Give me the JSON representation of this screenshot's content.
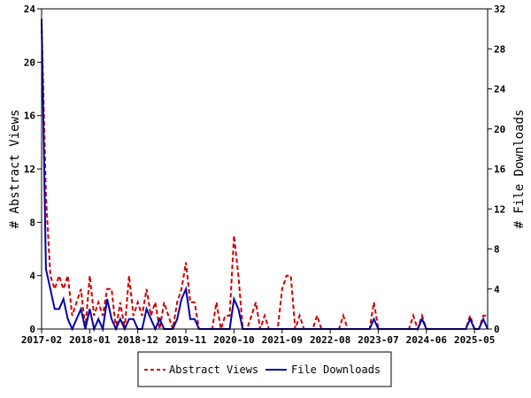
{
  "chart_data": {
    "type": "line",
    "x_start": "2017-02",
    "x_end": "2025-08",
    "x_ticks": [
      "2017-02",
      "2018-01",
      "2018-12",
      "2019-11",
      "2020-10",
      "2021-09",
      "2022-08",
      "2023-07",
      "2024-06",
      "2025-05"
    ],
    "ylabel": "# Abstract Views",
    "ylabel_right": "# File Downloads",
    "ylim": [
      0,
      24
    ],
    "ylim_right": [
      0,
      32
    ],
    "y_ticks": [
      "0",
      "4",
      "8",
      "12",
      "16",
      "20",
      "24"
    ],
    "y_ticks_right": [
      "0",
      "4",
      "8",
      "12",
      "16",
      "20",
      "24",
      "28",
      "32"
    ],
    "legend_position": "bottom-center",
    "grid": false,
    "series": [
      {
        "name": "Abstract Views",
        "axis": "left",
        "color": "#cc0000",
        "style": "dashed",
        "points": [
          [
            "2017-02",
            23
          ],
          [
            "2017-03",
            10
          ],
          [
            "2017-04",
            4
          ],
          [
            "2017-05",
            3
          ],
          [
            "2017-06",
            4
          ],
          [
            "2017-07",
            3
          ],
          [
            "2017-08",
            4
          ],
          [
            "2017-09",
            1
          ],
          [
            "2017-10",
            2
          ],
          [
            "2017-11",
            3
          ],
          [
            "2017-12",
            0
          ],
          [
            "2018-01",
            4
          ],
          [
            "2018-02",
            1
          ],
          [
            "2018-03",
            2
          ],
          [
            "2018-04",
            1
          ],
          [
            "2018-05",
            3
          ],
          [
            "2018-06",
            3
          ],
          [
            "2018-07",
            0
          ],
          [
            "2018-08",
            2
          ],
          [
            "2018-09",
            0
          ],
          [
            "2018-10",
            4
          ],
          [
            "2018-11",
            1
          ],
          [
            "2018-12",
            2
          ],
          [
            "2019-01",
            1
          ],
          [
            "2019-02",
            3
          ],
          [
            "2019-03",
            1
          ],
          [
            "2019-04",
            2
          ],
          [
            "2019-05",
            0
          ],
          [
            "2019-06",
            2
          ],
          [
            "2019-07",
            1
          ],
          [
            "2019-08",
            0
          ],
          [
            "2019-09",
            2
          ],
          [
            "2019-10",
            3
          ],
          [
            "2019-11",
            5
          ],
          [
            "2019-12",
            2
          ],
          [
            "2020-01",
            2
          ],
          [
            "2020-02",
            0
          ],
          [
            "2020-03",
            0
          ],
          [
            "2020-04",
            0
          ],
          [
            "2020-05",
            0
          ],
          [
            "2020-06",
            2
          ],
          [
            "2020-07",
            0
          ],
          [
            "2020-08",
            1
          ],
          [
            "2020-09",
            1
          ],
          [
            "2020-10",
            7
          ],
          [
            "2020-11",
            4
          ],
          [
            "2020-12",
            0
          ],
          [
            "2021-01",
            0
          ],
          [
            "2021-02",
            1
          ],
          [
            "2021-03",
            2
          ],
          [
            "2021-04",
            0
          ],
          [
            "2021-05",
            1
          ],
          [
            "2021-06",
            0
          ],
          [
            "2021-07",
            0
          ],
          [
            "2021-08",
            0
          ],
          [
            "2021-09",
            3
          ],
          [
            "2021-10",
            4
          ],
          [
            "2021-11",
            4
          ],
          [
            "2021-12",
            0
          ],
          [
            "2022-01",
            1
          ],
          [
            "2022-02",
            0
          ],
          [
            "2022-03",
            0
          ],
          [
            "2022-04",
            0
          ],
          [
            "2022-05",
            1
          ],
          [
            "2022-06",
            0
          ],
          [
            "2022-07",
            0
          ],
          [
            "2022-08",
            0
          ],
          [
            "2022-09",
            0
          ],
          [
            "2022-10",
            0
          ],
          [
            "2022-11",
            1
          ],
          [
            "2022-12",
            0
          ],
          [
            "2023-01",
            0
          ],
          [
            "2023-02",
            0
          ],
          [
            "2023-03",
            0
          ],
          [
            "2023-04",
            0
          ],
          [
            "2023-05",
            0
          ],
          [
            "2023-06",
            2
          ],
          [
            "2023-07",
            0
          ],
          [
            "2023-08",
            0
          ],
          [
            "2023-09",
            0
          ],
          [
            "2023-10",
            0
          ],
          [
            "2023-11",
            0
          ],
          [
            "2023-12",
            0
          ],
          [
            "2024-01",
            0
          ],
          [
            "2024-02",
            0
          ],
          [
            "2024-03",
            1
          ],
          [
            "2024-04",
            0
          ],
          [
            "2024-05",
            1
          ],
          [
            "2024-06",
            0
          ],
          [
            "2024-07",
            0
          ],
          [
            "2024-08",
            0
          ],
          [
            "2024-09",
            0
          ],
          [
            "2024-10",
            0
          ],
          [
            "2024-11",
            0
          ],
          [
            "2024-12",
            0
          ],
          [
            "2025-01",
            0
          ],
          [
            "2025-02",
            0
          ],
          [
            "2025-03",
            0
          ],
          [
            "2025-04",
            1
          ],
          [
            "2025-05",
            0
          ],
          [
            "2025-06",
            0
          ],
          [
            "2025-07",
            1
          ],
          [
            "2025-08",
            1
          ]
        ]
      },
      {
        "name": "File Downloads",
        "axis": "right",
        "color": "#0000aa",
        "style": "solid",
        "points": [
          [
            "2017-02",
            31
          ],
          [
            "2017-03",
            6
          ],
          [
            "2017-04",
            4
          ],
          [
            "2017-05",
            2
          ],
          [
            "2017-06",
            2
          ],
          [
            "2017-07",
            3
          ],
          [
            "2017-08",
            1
          ],
          [
            "2017-09",
            0
          ],
          [
            "2017-10",
            1
          ],
          [
            "2017-11",
            2
          ],
          [
            "2017-12",
            0
          ],
          [
            "2018-01",
            2
          ],
          [
            "2018-02",
            0
          ],
          [
            "2018-03",
            1
          ],
          [
            "2018-04",
            0
          ],
          [
            "2018-05",
            3
          ],
          [
            "2018-06",
            1
          ],
          [
            "2018-07",
            0
          ],
          [
            "2018-08",
            1
          ],
          [
            "2018-09",
            0
          ],
          [
            "2018-10",
            1
          ],
          [
            "2018-11",
            1
          ],
          [
            "2018-12",
            0
          ],
          [
            "2019-01",
            0
          ],
          [
            "2019-02",
            2
          ],
          [
            "2019-03",
            1
          ],
          [
            "2019-04",
            0
          ],
          [
            "2019-05",
            1
          ],
          [
            "2019-06",
            0
          ],
          [
            "2019-07",
            0
          ],
          [
            "2019-08",
            0
          ],
          [
            "2019-09",
            1
          ],
          [
            "2019-10",
            3
          ],
          [
            "2019-11",
            4
          ],
          [
            "2019-12",
            1
          ],
          [
            "2020-01",
            1
          ],
          [
            "2020-02",
            0
          ],
          [
            "2020-03",
            0
          ],
          [
            "2020-04",
            0
          ],
          [
            "2020-05",
            0
          ],
          [
            "2020-06",
            0
          ],
          [
            "2020-07",
            0
          ],
          [
            "2020-08",
            0
          ],
          [
            "2020-09",
            0
          ],
          [
            "2020-10",
            3
          ],
          [
            "2020-11",
            2
          ],
          [
            "2020-12",
            0
          ],
          [
            "2021-01",
            0
          ],
          [
            "2021-02",
            0
          ],
          [
            "2021-03",
            0
          ],
          [
            "2021-04",
            0
          ],
          [
            "2021-05",
            0
          ],
          [
            "2021-06",
            0
          ],
          [
            "2021-07",
            0
          ],
          [
            "2021-08",
            0
          ],
          [
            "2021-09",
            0
          ],
          [
            "2021-10",
            0
          ],
          [
            "2021-11",
            0
          ],
          [
            "2021-12",
            0
          ],
          [
            "2022-01",
            0
          ],
          [
            "2022-02",
            0
          ],
          [
            "2022-03",
            0
          ],
          [
            "2022-04",
            0
          ],
          [
            "2022-05",
            0
          ],
          [
            "2022-06",
            0
          ],
          [
            "2022-07",
            0
          ],
          [
            "2022-08",
            0
          ],
          [
            "2022-09",
            0
          ],
          [
            "2022-10",
            0
          ],
          [
            "2022-11",
            0
          ],
          [
            "2022-12",
            0
          ],
          [
            "2023-01",
            0
          ],
          [
            "2023-02",
            0
          ],
          [
            "2023-03",
            0
          ],
          [
            "2023-04",
            0
          ],
          [
            "2023-05",
            0
          ],
          [
            "2023-06",
            1
          ],
          [
            "2023-07",
            0
          ],
          [
            "2023-08",
            0
          ],
          [
            "2023-09",
            0
          ],
          [
            "2023-10",
            0
          ],
          [
            "2023-11",
            0
          ],
          [
            "2023-12",
            0
          ],
          [
            "2024-01",
            0
          ],
          [
            "2024-02",
            0
          ],
          [
            "2024-03",
            0
          ],
          [
            "2024-04",
            0
          ],
          [
            "2024-05",
            1
          ],
          [
            "2024-06",
            0
          ],
          [
            "2024-07",
            0
          ],
          [
            "2024-08",
            0
          ],
          [
            "2024-09",
            0
          ],
          [
            "2024-10",
            0
          ],
          [
            "2024-11",
            0
          ],
          [
            "2024-12",
            0
          ],
          [
            "2025-01",
            0
          ],
          [
            "2025-02",
            0
          ],
          [
            "2025-03",
            0
          ],
          [
            "2025-04",
            1
          ],
          [
            "2025-05",
            0
          ],
          [
            "2025-06",
            0
          ],
          [
            "2025-07",
            1
          ],
          [
            "2025-08",
            0
          ]
        ]
      }
    ]
  }
}
